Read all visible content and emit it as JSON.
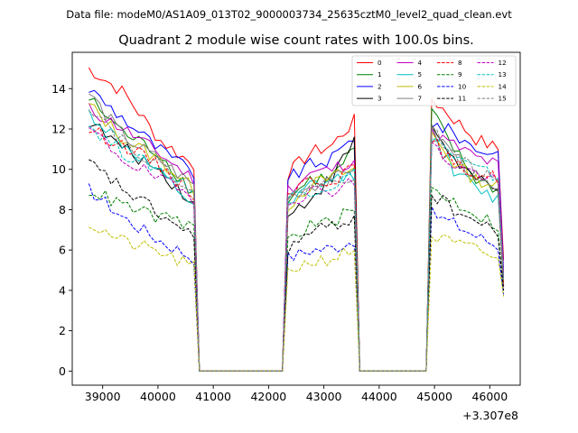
{
  "header": {
    "data_file": "Data file: modeM0/AS1A09_013T02_9000003734_25635cztM0_level2_quad_clean.evt"
  },
  "chart_data": {
    "type": "line",
    "title": "Quadrant 2 module wise count rates with 100.0s bins.",
    "xlabel": "",
    "ylabel": "",
    "x_offset_label": "+3.307e8",
    "xlim": [
      38450,
      46550
    ],
    "ylim": [
      -0.7,
      15.8
    ],
    "x_ticks": [
      39000,
      40000,
      41000,
      42000,
      43000,
      44000,
      45000,
      46000
    ],
    "x_tick_labels": [
      "39000",
      "40000",
      "41000",
      "42000",
      "43000",
      "44000",
      "45000",
      "46000"
    ],
    "y_ticks": [
      0,
      2,
      4,
      6,
      8,
      10,
      12,
      14
    ],
    "y_tick_labels": [
      "0",
      "2",
      "4",
      "6",
      "8",
      "10",
      "12",
      "14"
    ],
    "segments": [
      {
        "start": 38750,
        "end": 40650,
        "gap_start": 40750,
        "gap_end": 42250
      },
      {
        "start": 42350,
        "end": 43550,
        "gap_start": 43650,
        "gap_end": 44850
      },
      {
        "start": 44950,
        "end": 46150,
        "end_drop": 46250
      }
    ],
    "series": [
      {
        "name": "0",
        "color": "#ff0000",
        "dash": "solid",
        "levels": [
          [
            15.0,
            13.8,
            11.5,
            10.2
          ],
          [
            9.8,
            10.8,
            11.2,
            12.4
          ],
          [
            13.5,
            12.5,
            11.5,
            11.0
          ]
        ],
        "end": 5.5
      },
      {
        "name": "1",
        "color": "#008000",
        "dash": "solid",
        "levels": [
          [
            13.5,
            11.8,
            10.8,
            8.8
          ],
          [
            8.5,
            9.5,
            9.6,
            11.0
          ],
          [
            12.8,
            11.0,
            9.5,
            9.0
          ]
        ],
        "end": 4.3
      },
      {
        "name": "2",
        "color": "#0000ff",
        "dash": "solid",
        "levels": [
          [
            14.0,
            12.5,
            11.0,
            9.8
          ],
          [
            9.5,
            10.2,
            10.5,
            11.6
          ],
          [
            12.3,
            11.8,
            11.0,
            10.8
          ]
        ],
        "end": 5.0
      },
      {
        "name": "3",
        "color": "#000000",
        "dash": "solid",
        "levels": [
          [
            12.4,
            11.0,
            10.0,
            8.3
          ],
          [
            7.6,
            8.6,
            9.6,
            11.4
          ],
          [
            12.2,
            10.5,
            9.5,
            8.8
          ]
        ],
        "end": 4.2
      },
      {
        "name": "4",
        "color": "#bf00bf",
        "dash": "solid",
        "levels": [
          [
            13.0,
            12.0,
            10.8,
            9.5
          ],
          [
            9.0,
            9.8,
            10.0,
            10.5
          ],
          [
            11.8,
            11.2,
            10.6,
            10.2
          ]
        ],
        "end": 4.8
      },
      {
        "name": "5",
        "color": "#00bfbf",
        "dash": "solid",
        "levels": [
          [
            12.8,
            11.2,
            9.8,
            8.2
          ],
          [
            8.0,
            9.2,
            9.4,
            9.8
          ],
          [
            11.6,
            10.0,
            9.0,
            8.5
          ]
        ],
        "end": 4.3
      },
      {
        "name": "6",
        "color": "#bfbf00",
        "dash": "solid",
        "levels": [
          [
            13.2,
            11.5,
            10.5,
            9.0
          ],
          [
            8.2,
            9.2,
            9.6,
            10.0
          ],
          [
            11.8,
            10.3,
            9.5,
            9.2
          ]
        ],
        "end": 4.4
      },
      {
        "name": "7",
        "color": "#808080",
        "dash": "solid",
        "levels": [
          [
            13.8,
            11.6,
            10.5,
            9.2
          ],
          [
            8.6,
            9.2,
            9.4,
            10.2
          ],
          [
            11.9,
            10.8,
            9.6,
            8.7
          ]
        ],
        "end": 4.2
      },
      {
        "name": "8",
        "color": "#ff0000",
        "dash": "dashed",
        "levels": [
          [
            12.0,
            11.2,
            10.2,
            8.8
          ],
          [
            8.8,
            9.5,
            9.5,
            10.0
          ],
          [
            11.5,
            10.2,
            9.8,
            9.6
          ]
        ],
        "end": 4.2
      },
      {
        "name": "9",
        "color": "#008000",
        "dash": "dashed",
        "levels": [
          [
            9.0,
            8.2,
            7.6,
            7.2
          ],
          [
            6.5,
            7.2,
            7.4,
            8.0
          ],
          [
            9.0,
            8.4,
            7.8,
            7.2
          ]
        ],
        "end": 4.0
      },
      {
        "name": "10",
        "color": "#0000ff",
        "dash": "dashed",
        "levels": [
          [
            9.0,
            7.6,
            6.5,
            5.6
          ],
          [
            5.6,
            6.0,
            6.1,
            6.5
          ],
          [
            7.8,
            7.3,
            6.7,
            6.2
          ]
        ],
        "end": 3.8
      },
      {
        "name": "11",
        "color": "#000000",
        "dash": "dashed",
        "levels": [
          [
            10.3,
            9.0,
            7.8,
            6.6
          ],
          [
            6.1,
            6.8,
            7.2,
            7.6
          ],
          [
            8.8,
            8.0,
            7.4,
            6.8
          ]
        ],
        "end": 4.0
      },
      {
        "name": "12",
        "color": "#bf00bf",
        "dash": "dashed",
        "levels": [
          [
            12.0,
            10.5,
            9.5,
            8.6
          ],
          [
            8.4,
            8.9,
            9.0,
            9.4
          ],
          [
            11.2,
            10.2,
            9.8,
            9.4
          ]
        ],
        "end": 4.6
      },
      {
        "name": "13",
        "color": "#00bfbf",
        "dash": "dashed",
        "levels": [
          [
            12.2,
            10.8,
            10.0,
            9.0
          ],
          [
            8.6,
            9.0,
            9.2,
            9.8
          ],
          [
            11.8,
            10.6,
            10.0,
            9.6
          ]
        ],
        "end": 4.5
      },
      {
        "name": "14",
        "color": "#bfbf00",
        "dash": "dashed",
        "levels": [
          [
            7.3,
            6.4,
            5.9,
            5.1
          ],
          [
            5.0,
            5.4,
            5.6,
            6.0
          ],
          [
            6.7,
            6.3,
            6.0,
            5.6
          ]
        ],
        "end": 3.7
      },
      {
        "name": "15",
        "color": "#808080",
        "dash": "dashed",
        "levels": [
          [
            13.2,
            11.4,
            10.2,
            9.0
          ],
          [
            8.5,
            9.2,
            9.4,
            9.8
          ],
          [
            11.9,
            10.8,
            9.8,
            9.4
          ]
        ],
        "end": 4.5
      }
    ],
    "legend": {
      "position": "top-right",
      "ncol": 4
    }
  }
}
